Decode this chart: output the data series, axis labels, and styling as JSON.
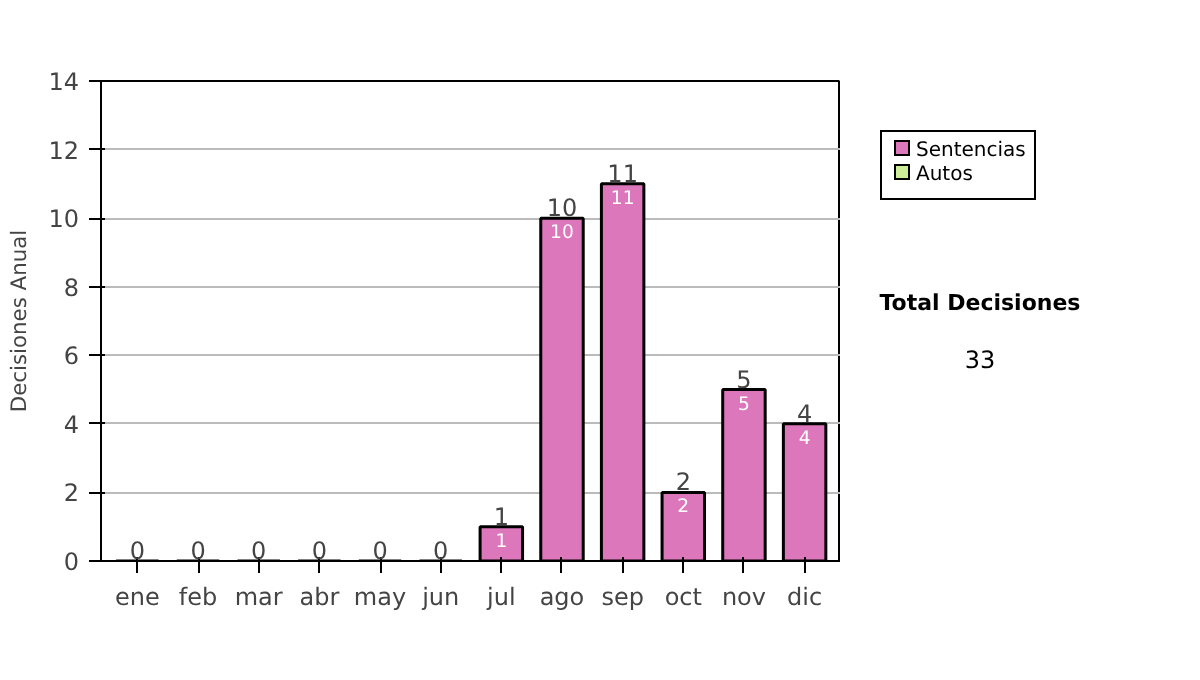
{
  "chart_data": {
    "type": "bar",
    "ylabel": "Decisiones Anual",
    "categories": [
      "ene",
      "feb",
      "mar",
      "abr",
      "may",
      "jun",
      "jul",
      "ago",
      "sep",
      "oct",
      "nov",
      "dic"
    ],
    "series": [
      {
        "name": "Sentencias",
        "color": "#dd77bb",
        "values": [
          0,
          0,
          0,
          0,
          0,
          0,
          1,
          10,
          11,
          2,
          5,
          4
        ],
        "value_labels": [
          null,
          null,
          null,
          null,
          null,
          null,
          "1",
          "10",
          "11",
          "2",
          "5",
          "4"
        ]
      },
      {
        "name": "Autos",
        "color": "#ccee99",
        "values": [
          null,
          null,
          null,
          null,
          null,
          null,
          null,
          null,
          null,
          null,
          null,
          null
        ]
      }
    ],
    "stacked": true,
    "totals": [
      "0",
      "0",
      "0",
      "0",
      "0",
      "0",
      "1",
      "10",
      "11",
      "2",
      "5",
      "4"
    ],
    "ylim": [
      0,
      14
    ],
    "yticks": [
      0,
      2,
      4,
      6,
      8,
      10,
      12,
      14
    ],
    "grid": "y",
    "legend": "right",
    "annotations": [
      "Total Decisiones",
      "33"
    ]
  }
}
